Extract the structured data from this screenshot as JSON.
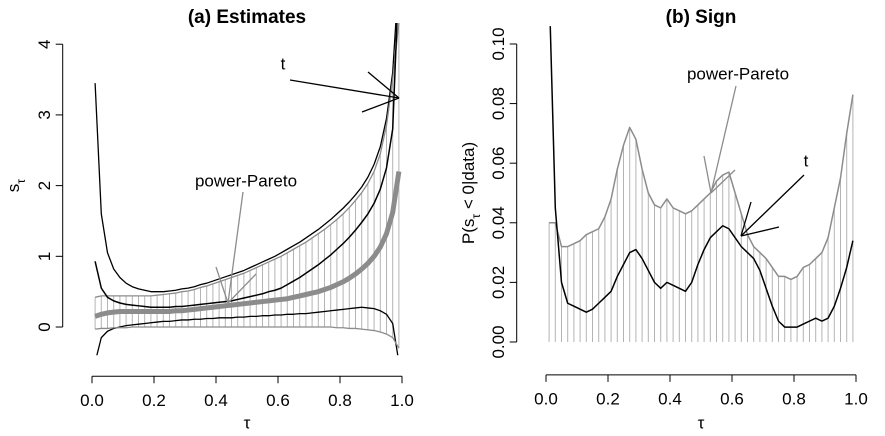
{
  "chart_data": [
    {
      "type": "line",
      "title": "(a) Estimates",
      "xlabel": "τ",
      "ylabel_parts": [
        "s",
        "τ"
      ],
      "xlim": [
        -0.03,
        1.03
      ],
      "ylim": [
        -0.4,
        4.3
      ],
      "xticks": [
        {
          "value": 0,
          "label": "0.0"
        },
        {
          "value": 0.2,
          "label": "0.2"
        },
        {
          "value": 0.4,
          "label": "0.4"
        },
        {
          "value": 0.6,
          "label": "0.6"
        },
        {
          "value": 0.8,
          "label": "0.8"
        },
        {
          "value": 1,
          "label": "1.0"
        }
      ],
      "yticks": [
        0,
        1,
        2,
        3,
        4
      ],
      "x": [
        0.01,
        0.03,
        0.05,
        0.07,
        0.09,
        0.11,
        0.13,
        0.15,
        0.17,
        0.19,
        0.21,
        0.23,
        0.25,
        0.27,
        0.29,
        0.31,
        0.33,
        0.35,
        0.37,
        0.39,
        0.41,
        0.43,
        0.45,
        0.47,
        0.49,
        0.51,
        0.53,
        0.55,
        0.57,
        0.59,
        0.61,
        0.63,
        0.65,
        0.67,
        0.69,
        0.71,
        0.73,
        0.75,
        0.77,
        0.79,
        0.81,
        0.83,
        0.85,
        0.87,
        0.89,
        0.91,
        0.93,
        0.95,
        0.97,
        0.99
      ],
      "series": [
        {
          "name": "t",
          "color": "#000000",
          "line_width": 1.5,
          "hatch": false,
          "values": [
            0.93,
            0.55,
            0.42,
            0.37,
            0.34,
            0.32,
            0.31,
            0.3,
            0.29,
            0.28,
            0.28,
            0.28,
            0.28,
            0.29,
            0.29,
            0.3,
            0.31,
            0.32,
            0.33,
            0.34,
            0.35,
            0.36,
            0.37,
            0.39,
            0.41,
            0.43,
            0.45,
            0.47,
            0.5,
            0.52,
            0.55,
            0.6,
            0.65,
            0.7,
            0.76,
            0.82,
            0.88,
            0.95,
            1.02,
            1.1,
            1.18,
            1.27,
            1.37,
            1.48,
            1.6,
            1.75,
            1.95,
            2.25,
            2.8,
            5.0
          ],
          "lower": [
            -0.5,
            -0.15,
            -0.06,
            -0.02,
            0,
            0.02,
            0.03,
            0.04,
            0.05,
            0.06,
            0.07,
            0.08,
            0.08,
            0.09,
            0.1,
            0.1,
            0.11,
            0.11,
            0.12,
            0.12,
            0.13,
            0.13,
            0.13,
            0.14,
            0.14,
            0.15,
            0.15,
            0.16,
            0.16,
            0.17,
            0.17,
            0.18,
            0.18,
            0.19,
            0.19,
            0.2,
            0.21,
            0.22,
            0.23,
            0.24,
            0.25,
            0.26,
            0.27,
            0.28,
            0.27,
            0.26,
            0.23,
            0.18,
            0.05,
            -0.5
          ],
          "upper": [
            3.45,
            1.6,
            1.05,
            0.82,
            0.7,
            0.62,
            0.57,
            0.54,
            0.52,
            0.5,
            0.5,
            0.5,
            0.51,
            0.52,
            0.54,
            0.55,
            0.57,
            0.6,
            0.62,
            0.65,
            0.68,
            0.71,
            0.74,
            0.77,
            0.8,
            0.84,
            0.88,
            0.92,
            0.96,
            1.0,
            1.05,
            1.1,
            1.15,
            1.2,
            1.26,
            1.32,
            1.38,
            1.45,
            1.52,
            1.6,
            1.68,
            1.77,
            1.87,
            1.98,
            2.12,
            2.3,
            2.55,
            2.95,
            3.6,
            5.0
          ]
        },
        {
          "name": "power-Pareto",
          "color": "#8c8c8c",
          "line_width": 5,
          "hatch": true,
          "values": [
            0.15,
            0.18,
            0.2,
            0.21,
            0.22,
            0.22,
            0.22,
            0.22,
            0.22,
            0.22,
            0.22,
            0.22,
            0.22,
            0.23,
            0.23,
            0.24,
            0.25,
            0.26,
            0.27,
            0.28,
            0.29,
            0.3,
            0.31,
            0.32,
            0.33,
            0.34,
            0.35,
            0.36,
            0.37,
            0.38,
            0.39,
            0.4,
            0.42,
            0.44,
            0.46,
            0.48,
            0.5,
            0.53,
            0.56,
            0.6,
            0.64,
            0.69,
            0.75,
            0.82,
            0.9,
            1.0,
            1.13,
            1.32,
            1.62,
            2.2
          ],
          "lower": [
            -0.03,
            -0.02,
            -0.02,
            -0.01,
            -0.01,
            -0.01,
            0,
            0,
            0,
            0,
            0,
            0,
            0,
            0,
            0,
            0,
            0,
            0,
            0,
            0,
            0,
            0,
            0,
            0,
            0,
            0,
            0,
            0,
            0,
            0,
            0,
            0,
            0,
            0,
            0,
            0,
            0,
            0,
            0,
            -0.01,
            -0.01,
            -0.02,
            -0.02,
            -0.03,
            -0.04,
            -0.05,
            -0.07,
            -0.1,
            -0.15,
            -0.3
          ],
          "upper": [
            0.42,
            0.44,
            0.44,
            0.44,
            0.44,
            0.44,
            0.44,
            0.44,
            0.44,
            0.44,
            0.45,
            0.46,
            0.47,
            0.48,
            0.5,
            0.51,
            0.53,
            0.56,
            0.58,
            0.61,
            0.64,
            0.67,
            0.7,
            0.73,
            0.76,
            0.8,
            0.84,
            0.88,
            0.92,
            0.96,
            1.0,
            1.05,
            1.1,
            1.15,
            1.2,
            1.26,
            1.32,
            1.38,
            1.45,
            1.52,
            1.6,
            1.69,
            1.79,
            1.9,
            2.03,
            2.2,
            2.45,
            2.85,
            3.5,
            4.3
          ]
        }
      ]
    },
    {
      "type": "line",
      "title": "(b) Sign",
      "xlabel": "τ",
      "ylabel_parts": [
        "P(s",
        "τ",
        " < 0|data)"
      ],
      "xlim": [
        -0.03,
        1.03
      ],
      "ylim": [
        -0.004,
        0.106
      ],
      "xticks": [
        {
          "value": 0,
          "label": "0.0"
        },
        {
          "value": 0.2,
          "label": "0.2"
        },
        {
          "value": 0.4,
          "label": "0.4"
        },
        {
          "value": 0.6,
          "label": "0.6"
        },
        {
          "value": 0.8,
          "label": "0.8"
        },
        {
          "value": 1,
          "label": "1.0"
        }
      ],
      "yticks": [
        {
          "value": 0,
          "label": "0.00"
        },
        {
          "value": 0.02,
          "label": "0.02"
        },
        {
          "value": 0.04,
          "label": "0.04"
        },
        {
          "value": 0.06,
          "label": "0.06"
        },
        {
          "value": 0.08,
          "label": "0.08"
        },
        {
          "value": 0.1,
          "label": "0.10"
        }
      ],
      "x": [
        0.01,
        0.03,
        0.05,
        0.07,
        0.09,
        0.11,
        0.13,
        0.15,
        0.17,
        0.19,
        0.21,
        0.23,
        0.25,
        0.27,
        0.29,
        0.31,
        0.33,
        0.35,
        0.37,
        0.39,
        0.41,
        0.43,
        0.45,
        0.47,
        0.49,
        0.51,
        0.53,
        0.55,
        0.57,
        0.59,
        0.61,
        0.63,
        0.65,
        0.67,
        0.69,
        0.71,
        0.73,
        0.75,
        0.77,
        0.79,
        0.81,
        0.83,
        0.85,
        0.87,
        0.89,
        0.91,
        0.93,
        0.95,
        0.97,
        0.99
      ],
      "series": [
        {
          "name": "power-Pareto",
          "color": "#8c8c8c",
          "line_width": 1.5,
          "hatch": true,
          "values": [
            0.04,
            0.04,
            0.032,
            0.032,
            0.033,
            0.034,
            0.036,
            0.037,
            0.038,
            0.042,
            0.048,
            0.058,
            0.066,
            0.072,
            0.068,
            0.058,
            0.05,
            0.046,
            0.045,
            0.048,
            0.045,
            0.044,
            0.043,
            0.044,
            0.046,
            0.048,
            0.05,
            0.054,
            0.056,
            0.057,
            0.05,
            0.043,
            0.036,
            0.032,
            0.03,
            0.028,
            0.025,
            0.022,
            0.022,
            0.021,
            0.022,
            0.025,
            0.026,
            0.028,
            0.03,
            0.035,
            0.045,
            0.055,
            0.07,
            0.083
          ]
        },
        {
          "name": "t",
          "color": "#000000",
          "line_width": 1.5,
          "hatch": false,
          "values": [
            0.12,
            0.045,
            0.02,
            0.013,
            0.012,
            0.011,
            0.01,
            0.011,
            0.013,
            0.015,
            0.017,
            0.022,
            0.026,
            0.03,
            0.031,
            0.028,
            0.024,
            0.02,
            0.018,
            0.02,
            0.019,
            0.018,
            0.017,
            0.02,
            0.026,
            0.031,
            0.035,
            0.037,
            0.039,
            0.038,
            0.035,
            0.032,
            0.03,
            0.028,
            0.024,
            0.018,
            0.012,
            0.007,
            0.005,
            0.005,
            0.005,
            0.006,
            0.007,
            0.008,
            0.007,
            0.008,
            0.012,
            0.018,
            0.025,
            0.034
          ]
        }
      ]
    }
  ]
}
